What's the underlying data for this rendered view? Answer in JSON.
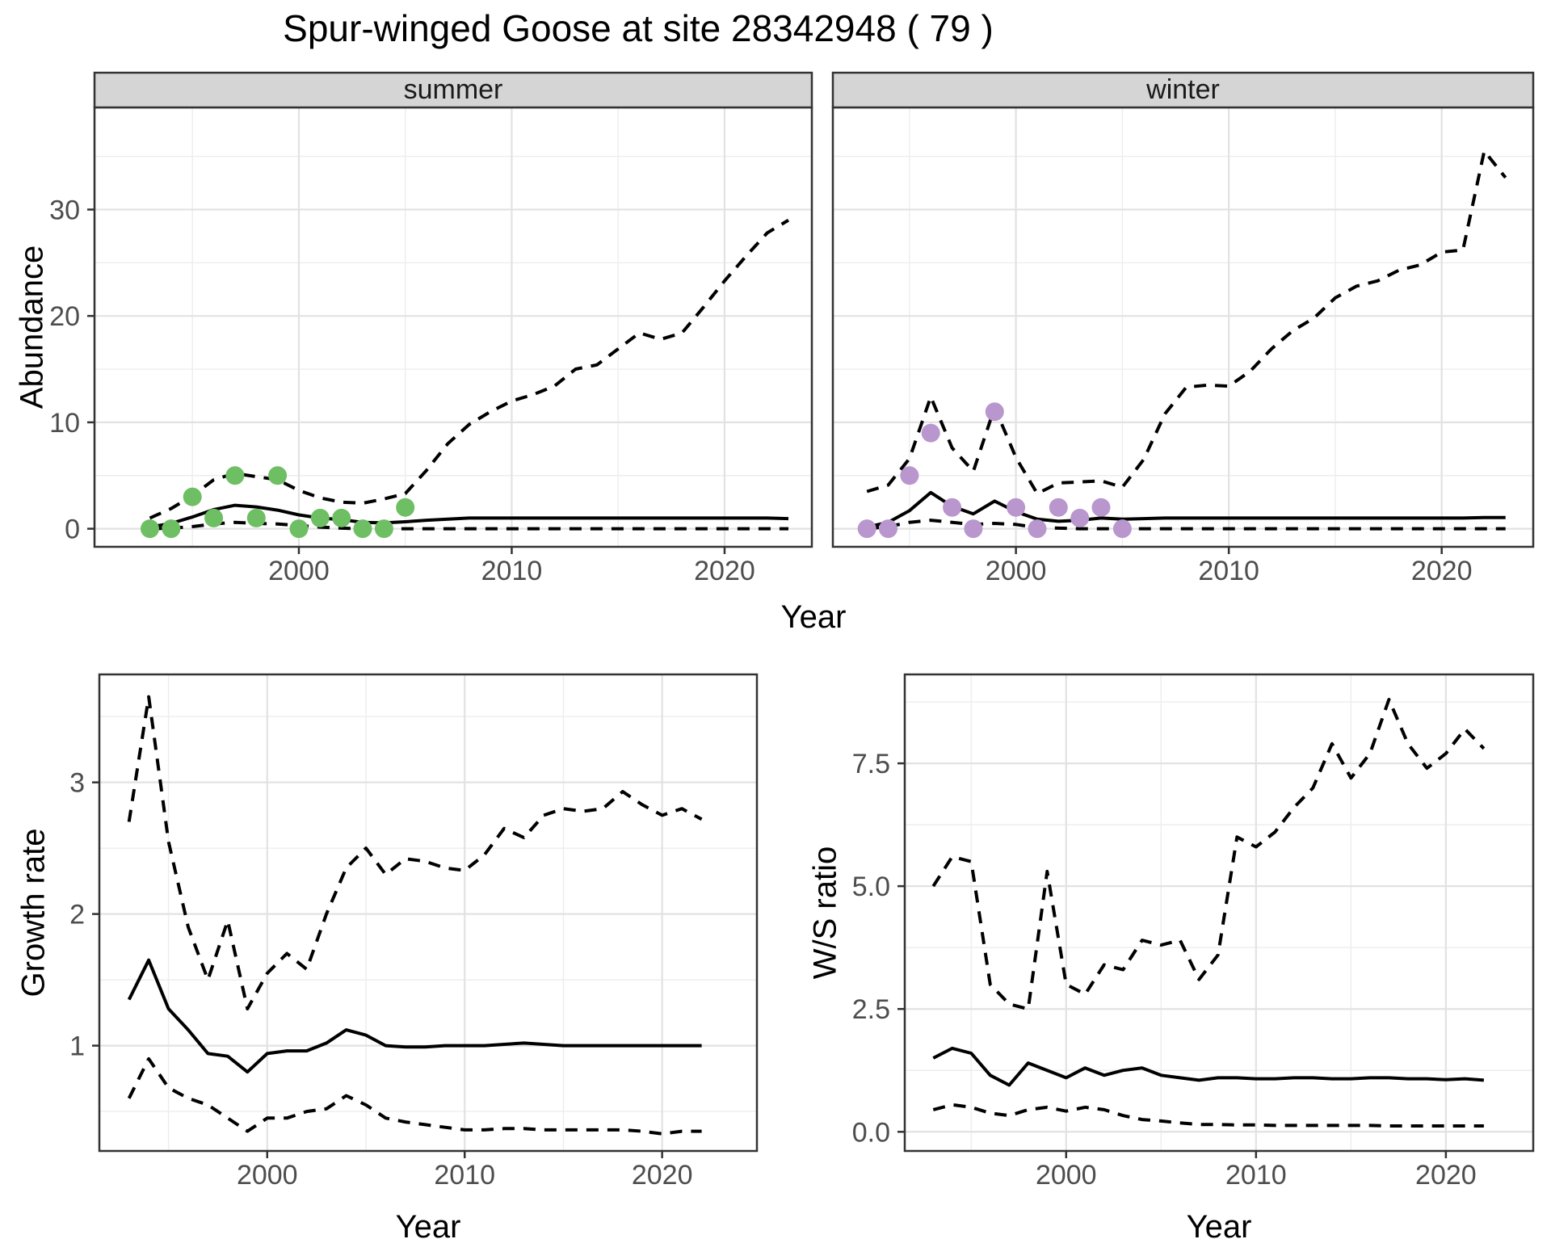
{
  "title": "Spur-winged Goose at site 28342948 ( 79 )",
  "colors": {
    "summer_points": "#6EBE64",
    "winter_points": "#B996CD",
    "line": "#000000",
    "strip_bg": "#D5D5D5",
    "panel_border": "#333333",
    "grid_major": "#E2E2E2",
    "grid_minor": "#EDEDED",
    "tick_text": "#4D4D4D"
  },
  "top_row": {
    "ylabel": "Abundance",
    "xlabel": "Year",
    "facets": [
      "summer",
      "winter"
    ],
    "ytick_labels": [
      "0",
      "10",
      "20",
      "30"
    ],
    "xtick_labels": [
      "2000",
      "2010",
      "2020"
    ]
  },
  "bottom_left": {
    "ylabel": "Growth rate",
    "xlabel": "Year",
    "ytick_labels": [
      "1",
      "2",
      "3"
    ],
    "xtick_labels": [
      "2000",
      "2010",
      "2020"
    ]
  },
  "bottom_right": {
    "ylabel": "W/S ratio",
    "xlabel": "Year",
    "ytick_labels": [
      "0.0",
      "2.5",
      "5.0",
      "7.5"
    ],
    "xtick_labels": [
      "2000",
      "2010",
      "2020"
    ]
  },
  "chart_data": [
    {
      "id": "abundance-summer",
      "type": "line",
      "facet": "summer",
      "title": "Abundance, summer facet",
      "xlabel": "Year",
      "ylabel": "Abundance",
      "xlim": [
        1990.4,
        2024.1
      ],
      "ylim": [
        -1.7,
        39.6
      ],
      "xticks": [
        2000,
        2010,
        2020
      ],
      "xticks_minor": [
        1995,
        2005,
        2015
      ],
      "yticks": [
        0,
        10,
        20,
        30
      ],
      "yticks_minor": [
        5,
        15,
        25,
        35
      ],
      "x": [
        1993,
        1994,
        1995,
        1996,
        1997,
        1998,
        1999,
        2000,
        2001,
        2002,
        2003,
        2004,
        2005,
        2006,
        2007,
        2008,
        2009,
        2010,
        2011,
        2012,
        2013,
        2014,
        2015,
        2016,
        2017,
        2018,
        2019,
        2020,
        2021,
        2022,
        2023
      ],
      "series": [
        {
          "name": "upper-ci",
          "style": "dashed",
          "values": [
            1.0,
            1.9,
            3.1,
            4.6,
            5.2,
            4.9,
            4.6,
            3.6,
            2.9,
            2.5,
            2.4,
            2.8,
            3.3,
            5.5,
            8.0,
            9.8,
            11.0,
            12.0,
            12.6,
            13.4,
            15.0,
            15.4,
            16.9,
            18.4,
            17.8,
            18.4,
            20.8,
            23.3,
            25.6,
            27.8,
            29.0
          ]
        },
        {
          "name": "median",
          "style": "solid",
          "values": [
            0.15,
            0.5,
            1.1,
            1.8,
            2.2,
            2.05,
            1.75,
            1.3,
            1.0,
            0.85,
            0.6,
            0.55,
            0.65,
            0.8,
            0.9,
            1.0,
            1.0,
            1.0,
            1.0,
            1.0,
            1.0,
            1.0,
            1.0,
            1.0,
            1.0,
            1.0,
            1.0,
            1.0,
            1.0,
            1.0,
            0.95
          ]
        },
        {
          "name": "lower-ci",
          "style": "dashed",
          "values": [
            0,
            0.05,
            0.2,
            0.45,
            0.6,
            0.5,
            0.45,
            0.3,
            0.15,
            0.05,
            0,
            0,
            0,
            0,
            0,
            0,
            0,
            0,
            0,
            0,
            0,
            0,
            0,
            0,
            0,
            0,
            0,
            0,
            0,
            0,
            0
          ]
        }
      ],
      "points": {
        "name": "observed-counts",
        "color_key": "summer_points",
        "x": [
          1993,
          1994,
          1995,
          1996,
          1997,
          1998,
          1999,
          2000,
          2001,
          2002,
          2003,
          2004,
          2005
        ],
        "y": [
          0,
          0,
          3,
          1,
          5,
          1,
          5,
          0,
          1,
          1,
          0,
          0,
          2
        ]
      }
    },
    {
      "id": "abundance-winter",
      "type": "line",
      "facet": "winter",
      "title": "Abundance, winter facet",
      "xlabel": "Year",
      "ylabel": "Abundance",
      "xlim": [
        1991.4,
        2024.3
      ],
      "ylim": [
        -1.7,
        39.6
      ],
      "xticks": [
        2000,
        2010,
        2020
      ],
      "xticks_minor": [
        1995,
        2005,
        2015
      ],
      "yticks": [
        0,
        10,
        20,
        30
      ],
      "yticks_minor": [
        5,
        15,
        25,
        35
      ],
      "x": [
        1993,
        1994,
        1995,
        1996,
        1997,
        1998,
        1999,
        2000,
        2001,
        2002,
        2003,
        2004,
        2005,
        2006,
        2007,
        2008,
        2009,
        2010,
        2011,
        2012,
        2013,
        2014,
        2015,
        2016,
        2017,
        2018,
        2019,
        2020,
        2021,
        2022,
        2023
      ],
      "series": [
        {
          "name": "upper-ci",
          "style": "dashed",
          "values": [
            3.5,
            4.1,
            6.6,
            12.4,
            7.6,
            5.4,
            11.4,
            6.7,
            3.3,
            4.3,
            4.4,
            4.5,
            3.9,
            6.5,
            10.8,
            13.3,
            13.5,
            13.4,
            14.8,
            16.9,
            18.6,
            19.8,
            21.7,
            22.8,
            23.3,
            24.3,
            24.8,
            26.0,
            26.2,
            35.5,
            33.0
          ]
        },
        {
          "name": "median",
          "style": "solid",
          "values": [
            0.15,
            0.6,
            1.7,
            3.4,
            2.1,
            1.4,
            2.6,
            1.6,
            0.9,
            0.7,
            0.8,
            1.0,
            0.9,
            0.95,
            1.0,
            1.0,
            1.0,
            1.0,
            1.0,
            1.0,
            1.0,
            1.0,
            1.0,
            1.0,
            1.0,
            1.0,
            1.0,
            1.0,
            1.0,
            1.05,
            1.05
          ]
        },
        {
          "name": "lower-ci",
          "style": "dashed",
          "values": [
            0,
            0.2,
            0.6,
            0.8,
            0.6,
            0.4,
            0.5,
            0.4,
            0.1,
            0.05,
            0,
            0,
            0,
            0,
            0,
            0,
            0,
            0,
            0,
            0,
            0,
            0,
            0,
            0,
            0,
            0,
            0,
            0,
            0,
            0,
            0
          ]
        }
      ],
      "points": {
        "name": "observed-counts",
        "color_key": "winter_points",
        "x": [
          1993,
          1994,
          1995,
          1996,
          1997,
          1998,
          1999,
          2000,
          2001,
          2002,
          2003,
          2004,
          2005
        ],
        "y": [
          0,
          0,
          5,
          9,
          2,
          0,
          11,
          2,
          0,
          2,
          1,
          2,
          0
        ]
      }
    },
    {
      "id": "growth-rate",
      "type": "line",
      "title": "Growth rate",
      "xlabel": "Year",
      "ylabel": "Growth rate",
      "xlim": [
        1991.5,
        2024.8
      ],
      "ylim": [
        0.2,
        3.82
      ],
      "xticks": [
        2000,
        2010,
        2020
      ],
      "xticks_minor": [
        1995,
        2005,
        2015
      ],
      "yticks": [
        1,
        2,
        3
      ],
      "yticks_minor": [
        0.5,
        1.5,
        2.5,
        3.5
      ],
      "x": [
        1993,
        1994,
        1995,
        1996,
        1997,
        1998,
        1999,
        2000,
        2001,
        2002,
        2003,
        2004,
        2005,
        2006,
        2007,
        2008,
        2009,
        2010,
        2011,
        2012,
        2013,
        2014,
        2015,
        2016,
        2017,
        2018,
        2019,
        2020,
        2021,
        2022
      ],
      "series": [
        {
          "name": "upper-ci",
          "style": "dashed",
          "values": [
            2.7,
            3.65,
            2.55,
            1.9,
            1.5,
            1.95,
            1.28,
            1.55,
            1.7,
            1.58,
            2.0,
            2.35,
            2.5,
            2.3,
            2.42,
            2.4,
            2.35,
            2.33,
            2.45,
            2.65,
            2.58,
            2.75,
            2.8,
            2.78,
            2.8,
            2.93,
            2.83,
            2.75,
            2.8,
            2.72
          ]
        },
        {
          "name": "median",
          "style": "solid",
          "values": [
            1.35,
            1.65,
            1.28,
            1.12,
            0.94,
            0.92,
            0.8,
            0.94,
            0.96,
            0.96,
            1.02,
            1.12,
            1.08,
            1.0,
            0.99,
            0.99,
            1.0,
            1.0,
            1.0,
            1.01,
            1.02,
            1.01,
            1.0,
            1.0,
            1.0,
            1.0,
            1.0,
            1.0,
            1.0,
            1.0
          ]
        },
        {
          "name": "lower-ci",
          "style": "dashed",
          "values": [
            0.6,
            0.9,
            0.68,
            0.6,
            0.55,
            0.45,
            0.35,
            0.45,
            0.45,
            0.5,
            0.52,
            0.62,
            0.55,
            0.45,
            0.42,
            0.4,
            0.38,
            0.36,
            0.36,
            0.37,
            0.37,
            0.36,
            0.36,
            0.36,
            0.36,
            0.36,
            0.35,
            0.33,
            0.35,
            0.35
          ]
        }
      ]
    },
    {
      "id": "ws-ratio",
      "type": "line",
      "title": "W/S ratio",
      "xlabel": "Year",
      "ylabel": "W/S ratio",
      "xlim": [
        1991.5,
        2024.6
      ],
      "ylim": [
        -0.39,
        9.31
      ],
      "xticks": [
        2000,
        2010,
        2020
      ],
      "xticks_minor": [
        1995,
        2005,
        2015
      ],
      "yticks": [
        0.0,
        2.5,
        5.0,
        7.5
      ],
      "yticks_minor": [
        1.25,
        3.75,
        6.25,
        8.75
      ],
      "x": [
        1993,
        1994,
        1995,
        1996,
        1997,
        1998,
        1999,
        2000,
        2001,
        2002,
        2003,
        2004,
        2005,
        2006,
        2007,
        2008,
        2009,
        2010,
        2011,
        2012,
        2013,
        2014,
        2015,
        2016,
        2017,
        2018,
        2019,
        2020,
        2021,
        2022
      ],
      "series": [
        {
          "name": "upper-ci",
          "style": "dashed",
          "values": [
            5.0,
            5.6,
            5.5,
            3.0,
            2.6,
            2.5,
            5.3,
            3.0,
            2.8,
            3.4,
            3.3,
            3.9,
            3.8,
            3.9,
            3.1,
            3.6,
            6.0,
            5.8,
            6.1,
            6.6,
            7.0,
            7.9,
            7.2,
            7.7,
            8.8,
            7.9,
            7.4,
            7.7,
            8.2,
            7.8
          ]
        },
        {
          "name": "median",
          "style": "solid",
          "values": [
            1.5,
            1.7,
            1.6,
            1.15,
            0.95,
            1.4,
            1.25,
            1.1,
            1.3,
            1.15,
            1.25,
            1.3,
            1.15,
            1.1,
            1.05,
            1.1,
            1.1,
            1.08,
            1.08,
            1.1,
            1.1,
            1.08,
            1.08,
            1.1,
            1.1,
            1.08,
            1.08,
            1.06,
            1.08,
            1.05
          ]
        },
        {
          "name": "lower-ci",
          "style": "dashed",
          "values": [
            0.45,
            0.55,
            0.5,
            0.38,
            0.33,
            0.45,
            0.5,
            0.42,
            0.5,
            0.45,
            0.33,
            0.25,
            0.22,
            0.18,
            0.15,
            0.15,
            0.14,
            0.14,
            0.13,
            0.13,
            0.13,
            0.13,
            0.13,
            0.13,
            0.12,
            0.12,
            0.12,
            0.12,
            0.12,
            0.12
          ]
        }
      ]
    }
  ]
}
